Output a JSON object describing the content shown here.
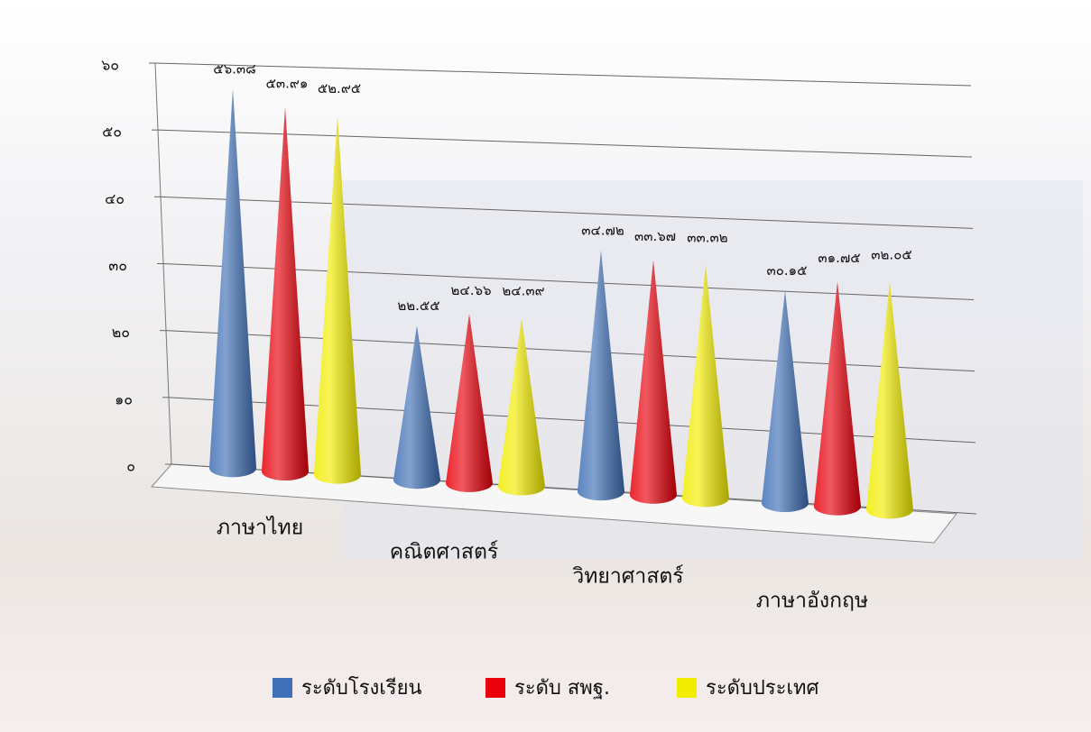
{
  "chart_data": {
    "type": "cone",
    "categories": [
      "ภาษาไทย",
      "คณิตศาสตร์",
      "วิทยาศาสตร์",
      "ภาษาอังกฤษ"
    ],
    "series": [
      {
        "name": "ระดับโรงเรียน",
        "color": "#3f6fb5",
        "values": [
          56.38,
          22.55,
          34.72,
          30.15
        ],
        "value_labels": [
          "๕๖.๓๘",
          "๒๒.๕๕",
          "๓๔.๗๒",
          "๓๐.๑๕"
        ]
      },
      {
        "name": "ระดับ สพฐ.",
        "color": "#e8000b",
        "values": [
          53.91,
          24.66,
          33.67,
          31.75
        ],
        "value_labels": [
          "๕๓.๙๑",
          "๒๔.๖๖",
          "๓๓.๖๗",
          "๓๑.๗๕"
        ]
      },
      {
        "name": "ระดับประเทศ",
        "color": "#f2ec00",
        "values": [
          52.95,
          24.39,
          33.32,
          32.05
        ],
        "value_labels": [
          "๕๒.๙๕",
          "๒๔.๓๙",
          "๓๓.๓๒",
          "๓๒.๐๕"
        ]
      }
    ],
    "ylim": [
      0,
      60
    ],
    "yticks": [
      {
        "value": 0,
        "label": "๐"
      },
      {
        "value": 10,
        "label": "๑๐"
      },
      {
        "value": 20,
        "label": "๒๐"
      },
      {
        "value": 30,
        "label": "๓๐"
      },
      {
        "value": 40,
        "label": "๔๐"
      },
      {
        "value": 50,
        "label": "๕๐"
      },
      {
        "value": 60,
        "label": "๖๐"
      }
    ],
    "grid": true
  }
}
